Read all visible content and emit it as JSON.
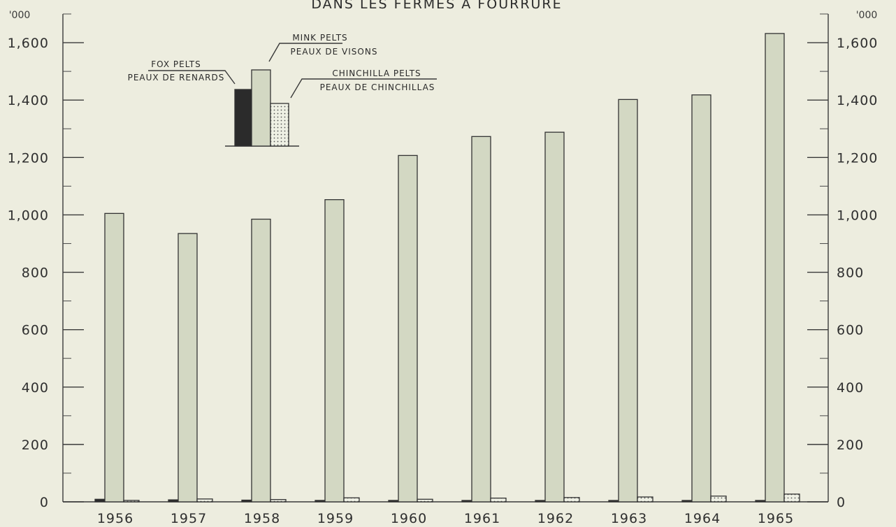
{
  "chart_data": {
    "type": "bar",
    "title": "DANS LES FERMES A FOURRURE",
    "unit_label_left": "'000",
    "unit_label_right": "'000",
    "categories": [
      "1956",
      "1957",
      "1958",
      "1959",
      "1960",
      "1961",
      "1962",
      "1963",
      "1964",
      "1965"
    ],
    "series": [
      {
        "name": "FOX PELTS / PEAUX DE RENARDS",
        "legend_en": "FOX PELTS",
        "legend_fr": "PEAUX DE RENARDS",
        "values": [
          9,
          7,
          6,
          5,
          5,
          4,
          4,
          3,
          3,
          3
        ],
        "color": "#2b2b2b"
      },
      {
        "name": "MINK PELTS / PEAUX DE VISONS",
        "legend_en": "MINK PELTS",
        "legend_fr": "PEAUX DE VISONS",
        "values": [
          1005,
          935,
          985,
          1053,
          1207,
          1273,
          1288,
          1402,
          1418,
          1632
        ],
        "color": "#d3d8c3"
      },
      {
        "name": "CHINCHILLA PELTS / PEAUX DE CHINCHILLAS",
        "legend_en": "CHINCHILLA PELTS",
        "legend_fr": "PEAUX DE CHINCHILLAS",
        "values": [
          5,
          10,
          8,
          14,
          9,
          13,
          15,
          17,
          20,
          27
        ],
        "color": "#e9ecdf"
      }
    ],
    "ylim": [
      0,
      1700
    ],
    "y_ticks": [
      "0",
      "200",
      "400",
      "600",
      "800",
      "1,000",
      "1,200",
      "1,400",
      "1,600"
    ],
    "y_tick_values": [
      0,
      200,
      400,
      600,
      800,
      1000,
      1200,
      1400,
      1600
    ],
    "grid": false,
    "legend_position": "top-left"
  }
}
